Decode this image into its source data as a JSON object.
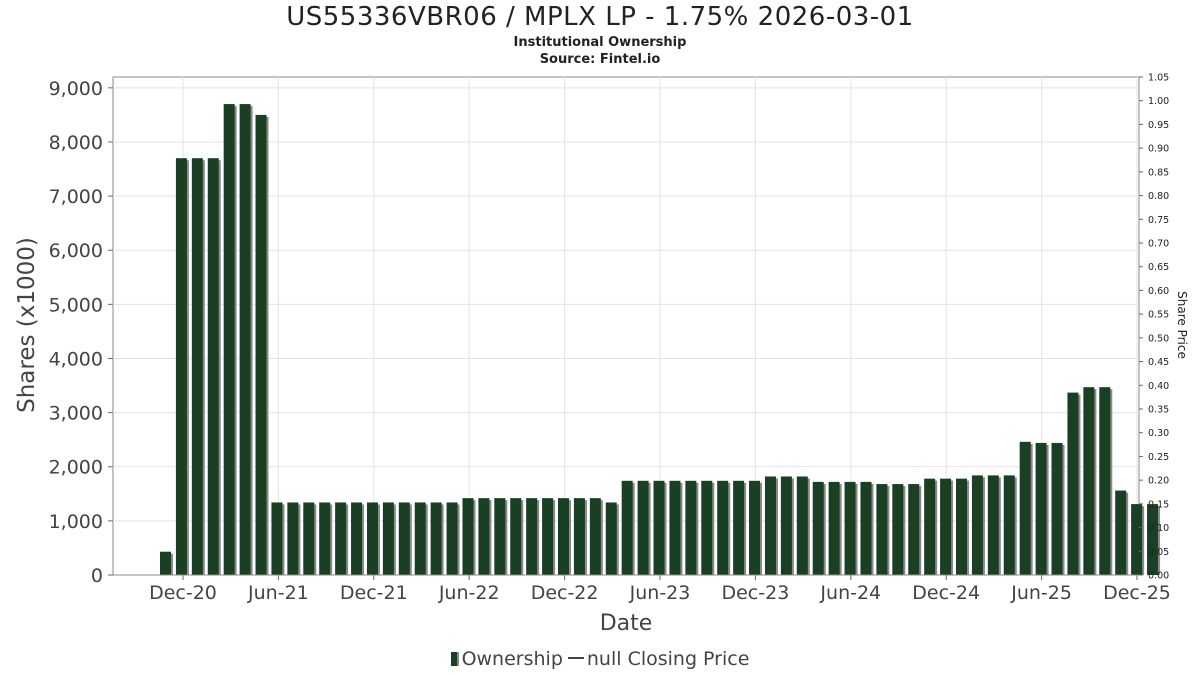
{
  "chart_data": {
    "type": "bar",
    "title": "US55336VBR06 / MPLX LP - 1.75% 2026-03-01",
    "subtitle": "Institutional Ownership",
    "source": "Source: Fintel.io",
    "xlabel": "Date",
    "ylabel": "Shares (x1000)",
    "y2label": "Share Price",
    "ylim": [
      0,
      9200
    ],
    "y2lim": [
      0,
      1.05
    ],
    "yticks": [
      "0",
      "1,000",
      "2,000",
      "3,000",
      "4,000",
      "5,000",
      "6,000",
      "7,000",
      "8,000",
      "9,000"
    ],
    "y2ticks": [
      "0.00",
      "0.05",
      "0.10",
      "0.15",
      "0.20",
      "0.25",
      "0.30",
      "0.35",
      "0.40",
      "0.45",
      "0.50",
      "0.55",
      "0.60",
      "0.65",
      "0.70",
      "0.75",
      "0.80",
      "0.85",
      "0.90",
      "0.95",
      "1.00",
      "1.05"
    ],
    "xticks": [
      "Dec-20",
      "Jun-21",
      "Dec-21",
      "Jun-22",
      "Dec-22",
      "Jun-23",
      "Dec-23",
      "Jun-24",
      "Dec-24",
      "Jun-25",
      "Dec-25"
    ],
    "grid": true,
    "legend_position": "bottom",
    "series": [
      {
        "name": "Ownership",
        "color": "#1a4023",
        "values": [
          430,
          7700,
          7700,
          7700,
          8700,
          8700,
          8500,
          1340,
          1340,
          1340,
          1340,
          1340,
          1340,
          1340,
          1340,
          1340,
          1340,
          1340,
          1340,
          1420,
          1420,
          1420,
          1420,
          1420,
          1420,
          1420,
          1420,
          1420,
          1340,
          1740,
          1740,
          1740,
          1740,
          1740,
          1740,
          1740,
          1740,
          1740,
          1820,
          1820,
          1820,
          1720,
          1720,
          1720,
          1720,
          1680,
          1680,
          1680,
          1780,
          1780,
          1780,
          1840,
          1840,
          1840,
          2460,
          2440,
          2440,
          3370,
          3470,
          3470,
          1560,
          1310,
          1310
        ]
      },
      {
        "name": "null Closing Price",
        "color": "#444444",
        "values": []
      }
    ]
  }
}
